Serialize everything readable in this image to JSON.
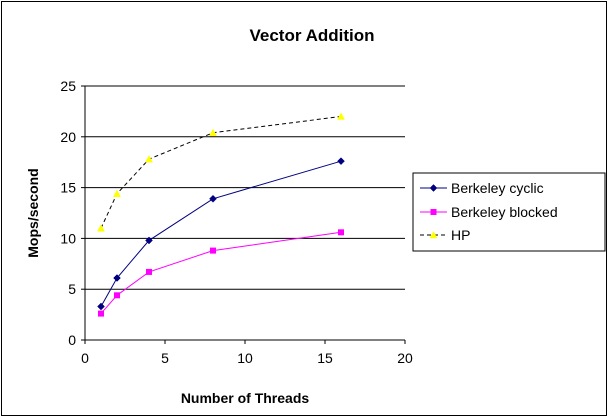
{
  "chart_data": {
    "type": "line",
    "title": "Vector Addition",
    "xlabel": "Number of Threads",
    "ylabel": "Mops/second",
    "xlim": [
      0,
      20
    ],
    "ylim": [
      0,
      25
    ],
    "xticks": [
      0,
      5,
      10,
      15,
      20
    ],
    "yticks": [
      0,
      5,
      10,
      15,
      20,
      25
    ],
    "grid": "horizontal",
    "legend_position": "right",
    "series": [
      {
        "name": "Berkeley cyclic",
        "color": "#000080",
        "marker": "diamond",
        "dash": "solid",
        "points": [
          [
            1,
            3.3
          ],
          [
            2,
            6.1
          ],
          [
            4,
            9.8
          ],
          [
            8,
            13.9
          ],
          [
            16,
            17.6
          ]
        ]
      },
      {
        "name": "Berkeley blocked",
        "color": "#ff00ff",
        "marker": "square",
        "dash": "solid",
        "points": [
          [
            1,
            2.6
          ],
          [
            2,
            4.4
          ],
          [
            4,
            6.7
          ],
          [
            8,
            8.8
          ],
          [
            16,
            10.6
          ]
        ]
      },
      {
        "name": "HP",
        "color": "#ffff00",
        "line_color": "#000000",
        "marker": "triangle",
        "dash": "dashed",
        "points": [
          [
            1,
            11.0
          ],
          [
            2,
            14.4
          ],
          [
            4,
            17.8
          ],
          [
            8,
            20.4
          ],
          [
            16,
            22.0
          ]
        ]
      }
    ]
  }
}
